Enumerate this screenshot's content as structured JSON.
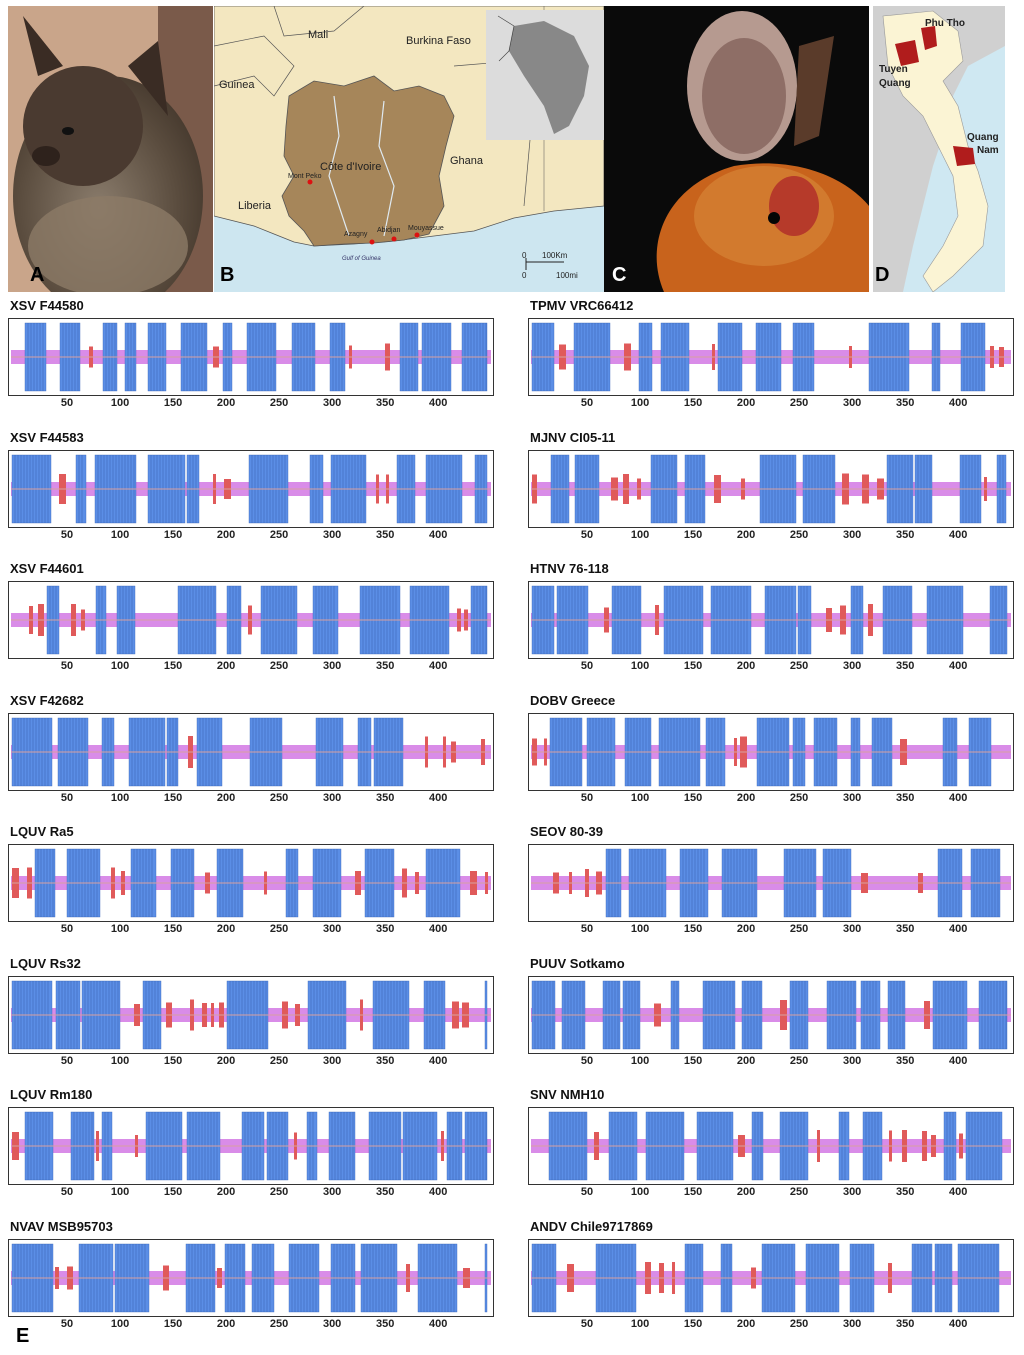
{
  "panels": {
    "a": {
      "label": "A"
    },
    "b": {
      "label": "B",
      "places": {
        "mali": "Mali",
        "burkina": "Burkina Faso",
        "guinea": "Guinea",
        "cote": "Côte d'Ivoire",
        "ghana": "Ghana",
        "liberia": "Liberia",
        "montpeko": "Mont Peko",
        "azagny": "Azagny",
        "abidjan": "Abidjan",
        "mouyassue": "Mouyassue",
        "gulf": "Gulf of Guinea"
      },
      "scale": {
        "zero1": "0",
        "km": "100Km",
        "zero2": "0",
        "mi": "100mi"
      }
    },
    "c": {
      "label": "C"
    },
    "d": {
      "label": "D",
      "places": {
        "phutho": "Phu Tho",
        "tuyen": "Tuyen",
        "quang": "Quang",
        "quang2": "Quang",
        "nam": "Nam"
      }
    },
    "e": {
      "label": "E"
    }
  },
  "colors": {
    "hydrophobic": "#5b8ee6",
    "hydrophilic": "#e05a5a",
    "center": "#cc66e0",
    "axis": "#d8a0a0"
  },
  "tick_labels": [
    "50",
    "100",
    "150",
    "200",
    "250",
    "300",
    "350",
    "400"
  ],
  "chart_data": [
    {
      "type": "hydropathy-profile",
      "title": "XSV F44580"
    },
    {
      "type": "hydropathy-profile",
      "title": "TPMV VRC66412"
    },
    {
      "type": "hydropathy-profile",
      "title": "XSV F44583"
    },
    {
      "type": "hydropathy-profile",
      "title": "MJNV CI05-11"
    },
    {
      "type": "hydropathy-profile",
      "title": "XSV F44601"
    },
    {
      "type": "hydropathy-profile",
      "title": "HTNV 76-118"
    },
    {
      "type": "hydropathy-profile",
      "title": "XSV F42682"
    },
    {
      "type": "hydropathy-profile",
      "title": "DOBV Greece"
    },
    {
      "type": "hydropathy-profile",
      "title": "LQUV Ra5"
    },
    {
      "type": "hydropathy-profile",
      "title": "SEOV 80-39"
    },
    {
      "type": "hydropathy-profile",
      "title": "LQUV Rs32"
    },
    {
      "type": "hydropathy-profile",
      "title": "PUUV Sotkamo"
    },
    {
      "type": "hydropathy-profile",
      "title": "LQUV Rm180"
    },
    {
      "type": "hydropathy-profile",
      "title": "SNV NMH10"
    },
    {
      "type": "hydropathy-profile",
      "title": "NVAV MSB95703"
    },
    {
      "type": "hydropathy-profile",
      "title": "ANDV Chile9717869"
    }
  ]
}
